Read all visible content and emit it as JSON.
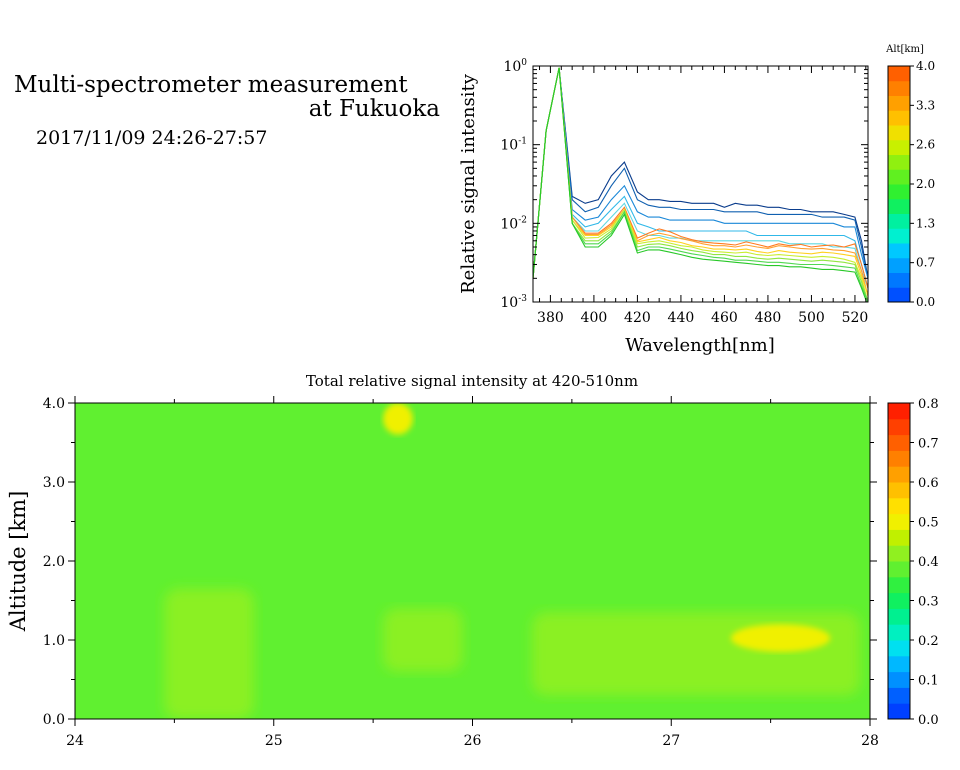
{
  "header": {
    "title_line1": "Multi-spectrometer measurement",
    "title_line2": "at Fukuoka",
    "datetime": "2017/11/09 24:26-27:57"
  },
  "chart_data": [
    {
      "type": "line",
      "xlabel": "Wavelength[nm]",
      "ylabel": "Relative signal intensity",
      "yscale": "log",
      "xlim": [
        372,
        526
      ],
      "ylim": [
        0.001,
        1
      ],
      "x_ticks": [
        "380",
        "400",
        "420",
        "440",
        "460",
        "480",
        "500",
        "520"
      ],
      "y_ticks": [
        {
          "base": "10",
          "exp": "0"
        },
        {
          "base": "10",
          "exp": "-1"
        },
        {
          "base": "10",
          "exp": "-2"
        },
        {
          "base": "10",
          "exp": "-3"
        }
      ],
      "legend_title": "Alt[km]",
      "legend_ticks": [
        "4.0",
        "3.3",
        "2.6",
        "2.0",
        "1.3",
        "0.7",
        "0.0"
      ],
      "colorbar_colors": [
        "#0050ff",
        "#0078ff",
        "#00a0ff",
        "#00c8ff",
        "#00f0d0",
        "#00f0a0",
        "#10f060",
        "#30f030",
        "#60f020",
        "#90f010",
        "#c8f000",
        "#f0e000",
        "#ffc000",
        "#ffa000",
        "#ff8000",
        "#ff6000"
      ],
      "x": [
        372,
        378,
        384,
        390,
        396,
        402,
        408,
        414,
        420,
        425,
        430,
        435,
        440,
        445,
        450,
        455,
        460,
        465,
        470,
        475,
        480,
        485,
        490,
        495,
        500,
        505,
        510,
        515,
        520,
        523,
        526
      ],
      "series": [
        {
          "color": "#0a3c8c",
          "values": [
            0.002,
            0.15,
            0.95,
            0.022,
            0.018,
            0.02,
            0.04,
            0.06,
            0.025,
            0.02,
            0.02,
            0.019,
            0.019,
            0.018,
            0.018,
            0.018,
            0.016,
            0.018,
            0.017,
            0.017,
            0.016,
            0.016,
            0.015,
            0.015,
            0.014,
            0.014,
            0.014,
            0.013,
            0.012,
            0.006,
            0.002
          ]
        },
        {
          "color": "#1060b0",
          "values": [
            0.002,
            0.15,
            0.95,
            0.02,
            0.014,
            0.016,
            0.03,
            0.05,
            0.02,
            0.017,
            0.016,
            0.016,
            0.015,
            0.015,
            0.015,
            0.015,
            0.014,
            0.014,
            0.014,
            0.014,
            0.013,
            0.013,
            0.013,
            0.013,
            0.013,
            0.012,
            0.012,
            0.012,
            0.011,
            0.005,
            0.002
          ]
        },
        {
          "color": "#1a88d8",
          "values": [
            0.002,
            0.15,
            0.95,
            0.015,
            0.011,
            0.012,
            0.02,
            0.03,
            0.014,
            0.012,
            0.012,
            0.011,
            0.011,
            0.011,
            0.011,
            0.011,
            0.01,
            0.01,
            0.01,
            0.01,
            0.01,
            0.01,
            0.01,
            0.01,
            0.01,
            0.01,
            0.01,
            0.009,
            0.009,
            0.004,
            0.002
          ]
        },
        {
          "color": "#30b8e8",
          "values": [
            0.002,
            0.15,
            0.95,
            0.013,
            0.009,
            0.01,
            0.015,
            0.022,
            0.01,
            0.009,
            0.008,
            0.008,
            0.008,
            0.008,
            0.008,
            0.008,
            0.008,
            0.008,
            0.008,
            0.007,
            0.007,
            0.007,
            0.007,
            0.007,
            0.007,
            0.007,
            0.007,
            0.007,
            0.006,
            0.003,
            0.0015
          ]
        },
        {
          "color": "#60d8e0",
          "values": [
            0.002,
            0.15,
            0.95,
            0.012,
            0.008,
            0.008,
            0.012,
            0.018,
            0.008,
            0.007,
            0.007,
            0.0065,
            0.0065,
            0.006,
            0.006,
            0.006,
            0.006,
            0.006,
            0.006,
            0.006,
            0.006,
            0.006,
            0.0055,
            0.0055,
            0.0055,
            0.0055,
            0.005,
            0.005,
            0.0048,
            0.0025,
            0.0015
          ]
        },
        {
          "color": "#ff7a20",
          "values": [
            0.002,
            0.15,
            0.95,
            0.012,
            0.0075,
            0.0075,
            0.01,
            0.016,
            0.0065,
            0.0075,
            0.0085,
            0.0078,
            0.0068,
            0.0062,
            0.0058,
            0.0056,
            0.0055,
            0.0053,
            0.0058,
            0.0054,
            0.005,
            0.0055,
            0.0052,
            0.0054,
            0.005,
            0.0052,
            0.0053,
            0.005,
            0.0055,
            0.003,
            0.0015
          ]
        },
        {
          "color": "#ffa030",
          "values": [
            0.002,
            0.15,
            0.95,
            0.012,
            0.0072,
            0.0072,
            0.0095,
            0.015,
            0.006,
            0.007,
            0.0075,
            0.007,
            0.0064,
            0.006,
            0.0055,
            0.0052,
            0.0052,
            0.005,
            0.0053,
            0.005,
            0.0048,
            0.0052,
            0.005,
            0.0048,
            0.0047,
            0.0048,
            0.0046,
            0.0045,
            0.0042,
            0.0025,
            0.0012
          ]
        },
        {
          "color": "#ffd020",
          "values": [
            0.002,
            0.15,
            0.95,
            0.011,
            0.007,
            0.007,
            0.009,
            0.015,
            0.0058,
            0.0062,
            0.0066,
            0.006,
            0.0057,
            0.0052,
            0.005,
            0.0047,
            0.0047,
            0.0046,
            0.0047,
            0.0044,
            0.0042,
            0.0045,
            0.0043,
            0.0042,
            0.0041,
            0.0043,
            0.0042,
            0.004,
            0.0038,
            0.0022,
            0.0012
          ]
        },
        {
          "color": "#c8ee30",
          "values": [
            0.002,
            0.15,
            0.95,
            0.011,
            0.0065,
            0.0066,
            0.0085,
            0.015,
            0.0055,
            0.0058,
            0.006,
            0.0056,
            0.0052,
            0.005,
            0.0046,
            0.0044,
            0.0043,
            0.0042,
            0.0043,
            0.004,
            0.0039,
            0.004,
            0.0039,
            0.0038,
            0.0037,
            0.0038,
            0.0037,
            0.0035,
            0.0032,
            0.002,
            0.001
          ]
        },
        {
          "color": "#90e640",
          "values": [
            0.002,
            0.15,
            0.95,
            0.01,
            0.006,
            0.006,
            0.008,
            0.014,
            0.005,
            0.0054,
            0.0055,
            0.0052,
            0.0048,
            0.0045,
            0.0043,
            0.004,
            0.004,
            0.0038,
            0.0038,
            0.0036,
            0.0035,
            0.0036,
            0.0035,
            0.0034,
            0.0033,
            0.0034,
            0.0033,
            0.0032,
            0.003,
            0.0018,
            0.001
          ]
        },
        {
          "color": "#50d850",
          "values": [
            0.002,
            0.15,
            0.95,
            0.01,
            0.0055,
            0.0055,
            0.0075,
            0.014,
            0.0045,
            0.005,
            0.005,
            0.0047,
            0.0044,
            0.0041,
            0.0039,
            0.0037,
            0.0036,
            0.0034,
            0.0034,
            0.0033,
            0.0032,
            0.0032,
            0.0031,
            0.003,
            0.003,
            0.003,
            0.0029,
            0.0028,
            0.0027,
            0.0016,
            0.001
          ]
        },
        {
          "color": "#28c828",
          "values": [
            0.002,
            0.15,
            0.95,
            0.01,
            0.005,
            0.005,
            0.007,
            0.013,
            0.0042,
            0.0046,
            0.0046,
            0.0043,
            0.004,
            0.0037,
            0.0035,
            0.0034,
            0.0033,
            0.0032,
            0.0031,
            0.003,
            0.0029,
            0.0029,
            0.0028,
            0.0028,
            0.0027,
            0.0026,
            0.0026,
            0.0025,
            0.0024,
            0.0015,
            0.0009
          ]
        }
      ]
    },
    {
      "type": "heatmap",
      "title": "Total relative signal intensity at 420-510nm",
      "ylabel": "Altitude [km]",
      "xlim": [
        24,
        28
      ],
      "ylim": [
        0,
        4
      ],
      "x_ticks": [
        "24",
        "25",
        "26",
        "27",
        "28"
      ],
      "y_ticks": [
        "0.0",
        "1.0",
        "2.0",
        "3.0",
        "4.0"
      ],
      "colorbar_ticks": [
        "0.8",
        "0.7",
        "0.6",
        "0.5",
        "0.4",
        "0.3",
        "0.2",
        "0.1",
        "0.0"
      ],
      "colorbar_range": [
        0,
        0.8
      ],
      "colorbar_colors": [
        "#0040ff",
        "#0060ff",
        "#0090ff",
        "#00b8ff",
        "#00e0f0",
        "#00f0c0",
        "#00f090",
        "#10f060",
        "#30f040",
        "#60f030",
        "#90f020",
        "#c0f000",
        "#f0f000",
        "#ffe000",
        "#ffc000",
        "#ffa000",
        "#ff8000",
        "#ff6000",
        "#ff4000",
        "#ff2000"
      ],
      "background_value": 0.38,
      "features": [
        {
          "desc": "high-level patch",
          "t": [
            24.45,
            24.9
          ],
          "alt": [
            0.0,
            1.65
          ],
          "value": 0.42
        },
        {
          "desc": "small bright blob at 4.0 km",
          "t": [
            25.55,
            25.7
          ],
          "alt": [
            3.6,
            4.0
          ],
          "value": 0.5
        },
        {
          "desc": "patch near 1 km",
          "t": [
            25.55,
            25.95
          ],
          "alt": [
            0.6,
            1.4
          ],
          "value": 0.42
        },
        {
          "desc": "layer near 1 km",
          "t": [
            26.3,
            27.95
          ],
          "alt": [
            0.3,
            1.35
          ],
          "value": 0.42
        },
        {
          "desc": "peak",
          "t": [
            27.3,
            27.8
          ],
          "alt": [
            0.85,
            1.2
          ],
          "value": 0.5
        }
      ]
    }
  ]
}
